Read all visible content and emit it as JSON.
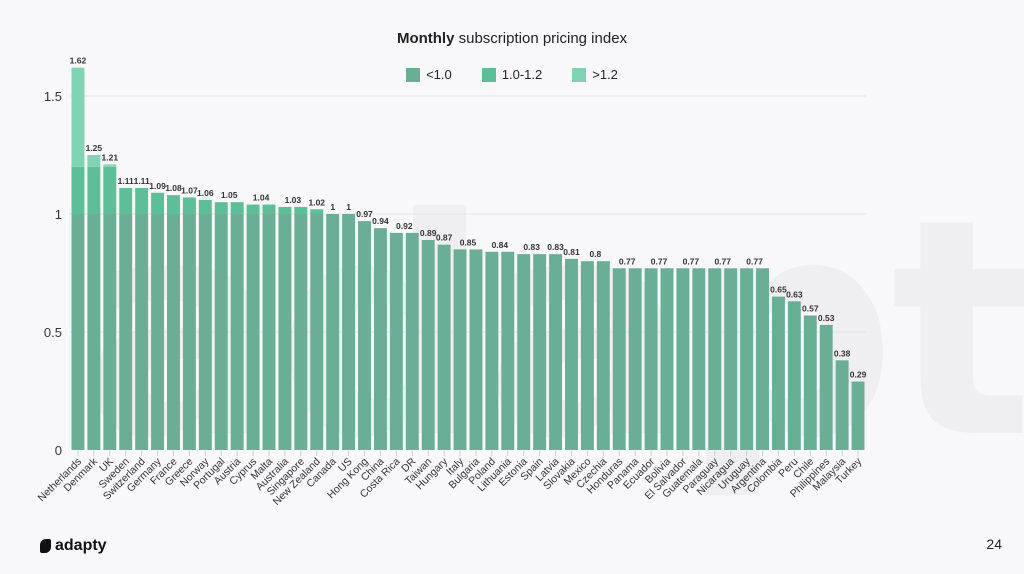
{
  "watermark": "adapty",
  "page_number": "24",
  "logo_text": "adapty",
  "colors": {
    "low": "#6aae96",
    "mid": "#5cbf98",
    "high": "#80d4b3",
    "grid": "#e3e3e6",
    "bg": "#f8f8fa"
  },
  "chart_data": {
    "type": "bar",
    "title_bold": "Monthly",
    "title_rest": " subscription pricing index",
    "xlabel": "",
    "ylabel": "",
    "ylim": [
      0,
      1.62
    ],
    "yticks": [
      0,
      0.5,
      1,
      1.5
    ],
    "ytick_labels": [
      "0",
      "0.5",
      "1",
      "1.5"
    ],
    "grid": true,
    "legend_position": "top-center",
    "legend": [
      {
        "label": "<1.0",
        "range": [
          0,
          1.0
        ],
        "color": "#6aae96"
      },
      {
        "label": "1.0-1.2",
        "range": [
          1.0,
          1.2
        ],
        "color": "#5cbf98"
      },
      {
        "label": ">1.2",
        "range": [
          1.2,
          99
        ],
        "color": "#80d4b3"
      }
    ],
    "categories": [
      "Netherlands",
      "Denmark",
      "UK",
      "Sweden",
      "Switzerland",
      "Germany",
      "France",
      "Greece",
      "Norway",
      "Portugal",
      "Austria",
      "Cyprus",
      "Malta",
      "Australia",
      "Singapore",
      "New Zealand",
      "Canada",
      "US",
      "Hong Kong",
      "China",
      "Costa Rica",
      "DR",
      "Taiwan",
      "Hungary",
      "Italy",
      "Bulgaria",
      "Poland",
      "Lithuania",
      "Estonia",
      "Spain",
      "Latvia",
      "Slovakia",
      "Mexico",
      "Czechia",
      "Honduras",
      "Panama",
      "Ecuador",
      "Bolivia",
      "El Salvador",
      "Guatemala",
      "Paraguay",
      "Nicaragua",
      "Uruguay",
      "Argentina",
      "Colombia",
      "Peru",
      "Chile",
      "Philippines",
      "Malaysia",
      "Turkey"
    ],
    "values": [
      1.62,
      1.25,
      1.21,
      1.11,
      1.11,
      1.09,
      1.08,
      1.07,
      1.06,
      1.05,
      1.05,
      1.04,
      1.04,
      1.03,
      1.03,
      1.02,
      1,
      1,
      0.97,
      0.94,
      0.92,
      0.92,
      0.89,
      0.87,
      0.85,
      0.85,
      0.84,
      0.84,
      0.83,
      0.83,
      0.83,
      0.81,
      0.8,
      0.8,
      0.77,
      0.77,
      0.77,
      0.77,
      0.77,
      0.77,
      0.77,
      0.77,
      0.77,
      0.77,
      0.65,
      0.63,
      0.57,
      0.53,
      0.38,
      0.29
    ],
    "data_labels": [
      {
        "from": 0,
        "to": 0,
        "text": "1.62"
      },
      {
        "from": 1,
        "to": 1,
        "text": "1.25"
      },
      {
        "from": 2,
        "to": 2,
        "text": "1.21"
      },
      {
        "from": 3,
        "to": 3,
        "text": "1.11"
      },
      {
        "from": 4,
        "to": 4,
        "text": "1.11"
      },
      {
        "from": 5,
        "to": 5,
        "text": "1.09"
      },
      {
        "from": 6,
        "to": 6,
        "text": "1.08"
      },
      {
        "from": 7,
        "to": 7,
        "text": "1.07"
      },
      {
        "from": 8,
        "to": 8,
        "text": "1.06"
      },
      {
        "from": 9,
        "to": 10,
        "text": "1.05"
      },
      {
        "from": 11,
        "to": 12,
        "text": "1.04"
      },
      {
        "from": 13,
        "to": 14,
        "text": "1.03"
      },
      {
        "from": 15,
        "to": 15,
        "text": "1.02"
      },
      {
        "from": 16,
        "to": 16,
        "text": "1"
      },
      {
        "from": 17,
        "to": 17,
        "text": "1"
      },
      {
        "from": 18,
        "to": 18,
        "text": "0.97"
      },
      {
        "from": 19,
        "to": 19,
        "text": "0.94"
      },
      {
        "from": 20,
        "to": 21,
        "text": "0.92"
      },
      {
        "from": 22,
        "to": 22,
        "text": "0.89"
      },
      {
        "from": 23,
        "to": 23,
        "text": "0.87"
      },
      {
        "from": 24,
        "to": 25,
        "text": "0.85"
      },
      {
        "from": 26,
        "to": 27,
        "text": "0.84"
      },
      {
        "from": 28,
        "to": 29,
        "text": "0.83"
      },
      {
        "from": 30,
        "to": 30,
        "text": "0.83"
      },
      {
        "from": 31,
        "to": 31,
        "text": "0.81"
      },
      {
        "from": 32,
        "to": 33,
        "text": "0.8"
      },
      {
        "from": 34,
        "to": 35,
        "text": "0.77"
      },
      {
        "from": 36,
        "to": 37,
        "text": "0.77"
      },
      {
        "from": 38,
        "to": 39,
        "text": "0.77"
      },
      {
        "from": 40,
        "to": 41,
        "text": "0.77"
      },
      {
        "from": 42,
        "to": 43,
        "text": "0.77"
      },
      {
        "from": 44,
        "to": 44,
        "text": "0.65"
      },
      {
        "from": 45,
        "to": 45,
        "text": "0.63"
      },
      {
        "from": 46,
        "to": 46,
        "text": "0.57"
      },
      {
        "from": 47,
        "to": 47,
        "text": "0.53"
      },
      {
        "from": 48,
        "to": 48,
        "text": "0.38"
      },
      {
        "from": 49,
        "to": 49,
        "text": "0.29"
      }
    ]
  }
}
